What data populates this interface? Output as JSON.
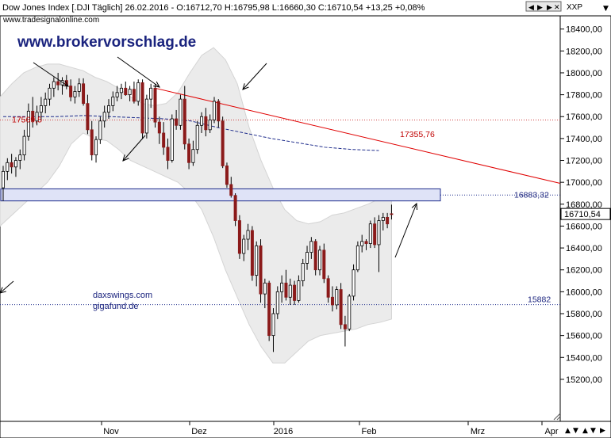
{
  "header": {
    "title": "Dow Jones Index [.DJI  Täglich] 26.02.2016 - O:16712,70 H:16795,98 L:16660,30 C:16710,54 +13,25 +0,08%",
    "site": "www.tradesignalonline.com",
    "symbol": "XXP"
  },
  "watermarks": {
    "broker": "www.brokervorschlag.de",
    "daxswings": "daxswings.com",
    "gigafund": "gigafund.de"
  },
  "annotations": {
    "level_17569": "17569,5",
    "level_17355": "17355,76",
    "level_16883": "16883,32",
    "level_15882": "15882",
    "last_price": "16710,54"
  },
  "colors": {
    "up": "#ffffff",
    "down": "#8b1a1a",
    "wick": "#000000",
    "trendline": "#e00000",
    "band_fill": "#ebebeb",
    "zone_fill": "#dfe3f7",
    "zone_stroke": "#1f2d8c",
    "ma": "#1f2d8c",
    "accent_text": "#1a237e"
  },
  "chart_data": {
    "type": "candlestick",
    "title": "Dow Jones Index [.DJI  Täglich]",
    "ylim": [
      15100,
      18700
    ],
    "y_ticks": [
      15200,
      15400,
      15600,
      15800,
      16000,
      16200,
      16400,
      16600,
      16800,
      17000,
      17200,
      17400,
      17600,
      17800,
      18000,
      18200,
      18400
    ],
    "y_tick_labels": [
      "15200,00",
      "15400,00",
      "15600,00",
      "15800,00",
      "16000,00",
      "16200,00",
      "16400,00",
      "16600,00",
      "16800,00",
      "17000,00",
      "17200,00",
      "17400,00",
      "17600,00",
      "17800,00",
      "18000,00",
      "18200,00",
      "18400,00"
    ],
    "x_labels": [
      "Nov",
      "Dez",
      "2016",
      "Feb",
      "Mrz",
      "Apr"
    ],
    "candles": [
      {
        "o": 16950,
        "h": 17150,
        "l": 16830,
        "c": 17100
      },
      {
        "o": 17100,
        "h": 17220,
        "l": 17020,
        "c": 17180
      },
      {
        "o": 17180,
        "h": 17260,
        "l": 17080,
        "c": 17140
      },
      {
        "o": 17140,
        "h": 17230,
        "l": 17050,
        "c": 17200
      },
      {
        "o": 17200,
        "h": 17300,
        "l": 17120,
        "c": 17250
      },
      {
        "o": 17250,
        "h": 17480,
        "l": 17200,
        "c": 17420
      },
      {
        "o": 17420,
        "h": 17720,
        "l": 17380,
        "c": 17650
      },
      {
        "o": 17650,
        "h": 17780,
        "l": 17500,
        "c": 17560
      },
      {
        "o": 17560,
        "h": 17700,
        "l": 17520,
        "c": 17640
      },
      {
        "o": 17640,
        "h": 17780,
        "l": 17560,
        "c": 17700
      },
      {
        "o": 17700,
        "h": 17820,
        "l": 17630,
        "c": 17760
      },
      {
        "o": 17760,
        "h": 17900,
        "l": 17700,
        "c": 17860
      },
      {
        "o": 17860,
        "h": 17960,
        "l": 17780,
        "c": 17920
      },
      {
        "o": 17920,
        "h": 18000,
        "l": 17840,
        "c": 17890
      },
      {
        "o": 17890,
        "h": 17960,
        "l": 17800,
        "c": 17930
      },
      {
        "o": 17930,
        "h": 17980,
        "l": 17850,
        "c": 17880
      },
      {
        "o": 17880,
        "h": 17940,
        "l": 17740,
        "c": 17780
      },
      {
        "o": 17780,
        "h": 17880,
        "l": 17720,
        "c": 17830
      },
      {
        "o": 17830,
        "h": 17950,
        "l": 17780,
        "c": 17900
      },
      {
        "o": 17900,
        "h": 17950,
        "l": 17700,
        "c": 17720
      },
      {
        "o": 17720,
        "h": 17800,
        "l": 17440,
        "c": 17480
      },
      {
        "o": 17480,
        "h": 17560,
        "l": 17200,
        "c": 17250
      },
      {
        "o": 17250,
        "h": 17420,
        "l": 17180,
        "c": 17390
      },
      {
        "o": 17390,
        "h": 17600,
        "l": 17350,
        "c": 17560
      },
      {
        "o": 17560,
        "h": 17700,
        "l": 17500,
        "c": 17640
      },
      {
        "o": 17640,
        "h": 17760,
        "l": 17580,
        "c": 17700
      },
      {
        "o": 17700,
        "h": 17830,
        "l": 17650,
        "c": 17780
      },
      {
        "o": 17780,
        "h": 17880,
        "l": 17740,
        "c": 17820
      },
      {
        "o": 17820,
        "h": 17900,
        "l": 17760,
        "c": 17860
      },
      {
        "o": 17860,
        "h": 17920,
        "l": 17790,
        "c": 17800
      },
      {
        "o": 17800,
        "h": 17880,
        "l": 17740,
        "c": 17850
      },
      {
        "o": 17850,
        "h": 17920,
        "l": 17720,
        "c": 17740
      },
      {
        "o": 17740,
        "h": 17940,
        "l": 17700,
        "c": 17910
      },
      {
        "o": 17910,
        "h": 17940,
        "l": 17400,
        "c": 17450
      },
      {
        "o": 17450,
        "h": 17800,
        "l": 17400,
        "c": 17760
      },
      {
        "o": 17760,
        "h": 17900,
        "l": 17680,
        "c": 17860
      },
      {
        "o": 17860,
        "h": 17900,
        "l": 17500,
        "c": 17550
      },
      {
        "o": 17550,
        "h": 17600,
        "l": 17350,
        "c": 17450
      },
      {
        "o": 17450,
        "h": 17550,
        "l": 17250,
        "c": 17320
      },
      {
        "o": 17320,
        "h": 17400,
        "l": 17120,
        "c": 17200
      },
      {
        "o": 17200,
        "h": 17620,
        "l": 17180,
        "c": 17580
      },
      {
        "o": 17580,
        "h": 17660,
        "l": 17480,
        "c": 17520
      },
      {
        "o": 17520,
        "h": 17800,
        "l": 17480,
        "c": 17760
      },
      {
        "o": 17760,
        "h": 17880,
        "l": 17300,
        "c": 17350
      },
      {
        "o": 17350,
        "h": 17400,
        "l": 17120,
        "c": 17180
      },
      {
        "o": 17180,
        "h": 17380,
        "l": 17150,
        "c": 17300
      },
      {
        "o": 17300,
        "h": 17560,
        "l": 17260,
        "c": 17520
      },
      {
        "o": 17520,
        "h": 17640,
        "l": 17450,
        "c": 17600
      },
      {
        "o": 17600,
        "h": 17680,
        "l": 17420,
        "c": 17480
      },
      {
        "o": 17480,
        "h": 17620,
        "l": 17450,
        "c": 17570
      },
      {
        "o": 17570,
        "h": 17780,
        "l": 17540,
        "c": 17740
      },
      {
        "o": 17740,
        "h": 17760,
        "l": 17500,
        "c": 17560
      },
      {
        "o": 17560,
        "h": 17600,
        "l": 17130,
        "c": 17150
      },
      {
        "o": 17150,
        "h": 17180,
        "l": 16950,
        "c": 16980
      },
      {
        "o": 16980,
        "h": 17050,
        "l": 16860,
        "c": 16880
      },
      {
        "o": 16880,
        "h": 16900,
        "l": 16600,
        "c": 16650
      },
      {
        "o": 16650,
        "h": 16700,
        "l": 16300,
        "c": 16350
      },
      {
        "o": 16350,
        "h": 16520,
        "l": 16280,
        "c": 16480
      },
      {
        "o": 16480,
        "h": 16620,
        "l": 16380,
        "c": 16560
      },
      {
        "o": 16560,
        "h": 16600,
        "l": 16100,
        "c": 16150
      },
      {
        "o": 16150,
        "h": 16460,
        "l": 16050,
        "c": 16420
      },
      {
        "o": 16420,
        "h": 16480,
        "l": 15900,
        "c": 15980
      },
      {
        "o": 15980,
        "h": 16120,
        "l": 15850,
        "c": 16080
      },
      {
        "o": 16080,
        "h": 16100,
        "l": 15550,
        "c": 15600
      },
      {
        "o": 15600,
        "h": 15850,
        "l": 15450,
        "c": 15800
      },
      {
        "o": 15800,
        "h": 16050,
        "l": 15750,
        "c": 16000
      },
      {
        "o": 16000,
        "h": 16150,
        "l": 15900,
        "c": 16080
      },
      {
        "o": 16080,
        "h": 16200,
        "l": 15920,
        "c": 15950
      },
      {
        "o": 15950,
        "h": 16120,
        "l": 15880,
        "c": 16060
      },
      {
        "o": 16060,
        "h": 16100,
        "l": 15880,
        "c": 15920
      },
      {
        "o": 15920,
        "h": 16150,
        "l": 15900,
        "c": 16100
      },
      {
        "o": 16100,
        "h": 16300,
        "l": 16050,
        "c": 16260
      },
      {
        "o": 16260,
        "h": 16420,
        "l": 16200,
        "c": 16360
      },
      {
        "o": 16360,
        "h": 16500,
        "l": 16300,
        "c": 16460
      },
      {
        "o": 16460,
        "h": 16480,
        "l": 16150,
        "c": 16200
      },
      {
        "o": 16200,
        "h": 16420,
        "l": 16150,
        "c": 16380
      },
      {
        "o": 16380,
        "h": 16440,
        "l": 16080,
        "c": 16120
      },
      {
        "o": 16120,
        "h": 16150,
        "l": 15900,
        "c": 15950
      },
      {
        "o": 15950,
        "h": 16050,
        "l": 15820,
        "c": 15880
      },
      {
        "o": 15880,
        "h": 16050,
        "l": 15840,
        "c": 16020
      },
      {
        "o": 16020,
        "h": 16080,
        "l": 15660,
        "c": 15700
      },
      {
        "o": 15700,
        "h": 15780,
        "l": 15500,
        "c": 15660
      },
      {
        "o": 15660,
        "h": 15980,
        "l": 15640,
        "c": 15960
      },
      {
        "o": 15960,
        "h": 16250,
        "l": 15920,
        "c": 16200
      },
      {
        "o": 16200,
        "h": 16460,
        "l": 16180,
        "c": 16420
      },
      {
        "o": 16420,
        "h": 16520,
        "l": 16360,
        "c": 16460
      },
      {
        "o": 16460,
        "h": 16480,
        "l": 16380,
        "c": 16440
      },
      {
        "o": 16440,
        "h": 16650,
        "l": 16400,
        "c": 16620
      },
      {
        "o": 16620,
        "h": 16680,
        "l": 16400,
        "c": 16430
      },
      {
        "o": 16430,
        "h": 16700,
        "l": 16180,
        "c": 16650
      },
      {
        "o": 16650,
        "h": 16720,
        "l": 16560,
        "c": 16680
      },
      {
        "o": 16680,
        "h": 16720,
        "l": 16580,
        "c": 16620
      },
      {
        "o": 16712.7,
        "h": 16795.98,
        "l": 16660.3,
        "c": 16710.54
      }
    ],
    "bands_upper": [
      17780,
      17900,
      18000,
      18050,
      18080,
      18080,
      18050,
      18020,
      17960,
      17920,
      17860,
      17780,
      17720,
      17700,
      17720,
      17820,
      18000,
      18160,
      18230,
      18120,
      17900,
      17500,
      17200,
      16950,
      16750,
      16650,
      16620,
      16640,
      16700,
      16720,
      16760,
      16800,
      16850,
      16900
    ],
    "bands_lower": [
      16600,
      16700,
      16800,
      16900,
      17000,
      17150,
      17350,
      17450,
      17400,
      17380,
      17300,
      17200,
      17150,
      17100,
      17050,
      17000,
      16900,
      16750,
      16500,
      16200,
      15950,
      15700,
      15500,
      15350,
      15350,
      15450,
      15550,
      15600,
      15620,
      15640,
      15660,
      15700,
      15720,
      15750
    ],
    "bands_x_end_index": 92,
    "moving_average": [
      17600,
      17600,
      17600,
      17610,
      17600,
      17590,
      17580,
      17560,
      17500,
      17450,
      17400,
      17360,
      17320,
      17300,
      17290
    ],
    "ma_start_index": 0,
    "ma_end_index": 89,
    "lines": {
      "h_17569": 17569.5,
      "h_15882": 15882,
      "h_16883": 16883.32,
      "trendline_y_at_point": 17355.76
    },
    "resistance_zone": {
      "low": 16830,
      "high": 16940
    },
    "last_close": 16710.54
  }
}
